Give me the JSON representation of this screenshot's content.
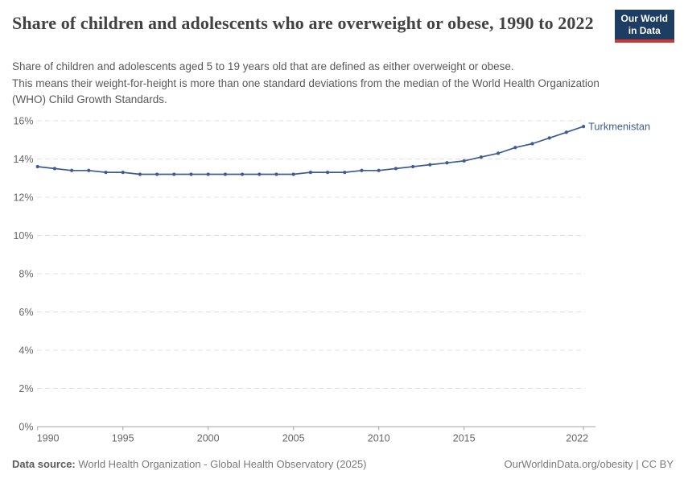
{
  "header": {
    "title": "Share of children and adolescents who are overweight or obese, 1990 to 2022",
    "subtitle_line1": "Share of children and adolescents aged 5 to 19 years old that are defined as either overweight or obese.",
    "subtitle_line2": "This means their weight-for-height is more than one standard deviations from the median of the World Health Organization",
    "subtitle_line3": "(WHO) Child Growth Standards.",
    "logo": {
      "line1": "Our World",
      "line2": "in Data",
      "bg_color": "#1d3d63",
      "accent_color": "#cd3730"
    }
  },
  "chart_data": {
    "type": "line",
    "title": "Share of children and adolescents who are overweight or obese, 1990 to 2022",
    "xlabel": "",
    "ylabel": "",
    "x": [
      1990,
      1991,
      1992,
      1993,
      1994,
      1995,
      1996,
      1997,
      1998,
      1999,
      2000,
      2001,
      2002,
      2003,
      2004,
      2005,
      2006,
      2007,
      2008,
      2009,
      2010,
      2011,
      2012,
      2013,
      2014,
      2015,
      2016,
      2017,
      2018,
      2019,
      2020,
      2021,
      2022
    ],
    "series": [
      {
        "name": "Turkmenistan",
        "color": "#3d5c94",
        "values": [
          13.6,
          13.5,
          13.4,
          13.4,
          13.3,
          13.3,
          13.2,
          13.2,
          13.2,
          13.2,
          13.2,
          13.2,
          13.2,
          13.2,
          13.2,
          13.2,
          13.3,
          13.3,
          13.3,
          13.4,
          13.4,
          13.5,
          13.6,
          13.7,
          13.8,
          13.9,
          14.1,
          14.3,
          14.6,
          14.8,
          15.1,
          15.4,
          15.7
        ]
      }
    ],
    "xlim": [
      1990,
      2022
    ],
    "ylim": [
      0,
      16
    ],
    "x_tick_years": [
      1990,
      1995,
      2000,
      2005,
      2010,
      2015,
      2022
    ],
    "y_tick_values": [
      0,
      2,
      4,
      6,
      8,
      10,
      12,
      14,
      16
    ],
    "y_tick_suffix": "%",
    "grid": "horizontal-dashed",
    "legend": "series-end-label",
    "grid_color": "#e0e0e0",
    "axis_color": "#a6a6a6",
    "tick_label_color": "#666666"
  },
  "footer": {
    "datasource_label": "Data source:",
    "datasource_value": " World Health Organization - Global Health Observatory (2025)",
    "attribution": "OurWorldinData.org/obesity | CC BY"
  }
}
